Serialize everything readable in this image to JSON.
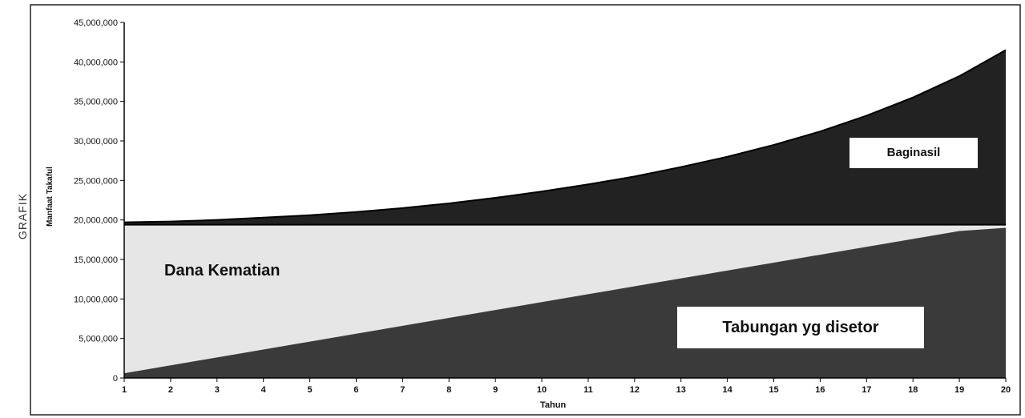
{
  "side_label": "GRAFIK",
  "chart_data": {
    "type": "area",
    "xlabel": "Tahun",
    "ylabel": "Manfaat Takaful",
    "ylim": [
      0,
      45000000
    ],
    "yticks": [
      "0",
      "5,000,000",
      "10,000,000",
      "15,000,000",
      "20,000,000",
      "25,000,000",
      "30,000,000",
      "35,000,000",
      "40,000,000",
      "45,000,000"
    ],
    "x": [
      1,
      2,
      3,
      4,
      5,
      6,
      7,
      8,
      9,
      10,
      11,
      12,
      13,
      14,
      15,
      16,
      17,
      18,
      19,
      20
    ],
    "series": [
      {
        "name": "Tabungan yg disetor",
        "values": [
          600000,
          1600000,
          2600000,
          3600000,
          4600000,
          5600000,
          6600000,
          7600000,
          8600000,
          9600000,
          10600000,
          11600000,
          12600000,
          13600000,
          14600000,
          15600000,
          16600000,
          17600000,
          18600000,
          19000000
        ]
      },
      {
        "name": "Dana Kematian",
        "values": [
          19400000,
          19400000,
          19400000,
          19400000,
          19400000,
          19400000,
          19400000,
          19400000,
          19400000,
          19400000,
          19400000,
          19400000,
          19400000,
          19400000,
          19400000,
          19400000,
          19400000,
          19400000,
          19400000,
          19400000
        ]
      },
      {
        "name": "Baginasil",
        "values": [
          19700000,
          19800000,
          20000000,
          20300000,
          20600000,
          21000000,
          21500000,
          22100000,
          22800000,
          23600000,
          24500000,
          25500000,
          26700000,
          28000000,
          29500000,
          31200000,
          33200000,
          35500000,
          38200000,
          41500000
        ]
      }
    ],
    "annotations": [
      "Dana Kematian",
      "Tabungan yg disetor",
      "Baginasil"
    ],
    "colors": {
      "tabungan": "#3a3a3a",
      "baginasil": "#222222",
      "dana": "#e6e6e6"
    }
  }
}
